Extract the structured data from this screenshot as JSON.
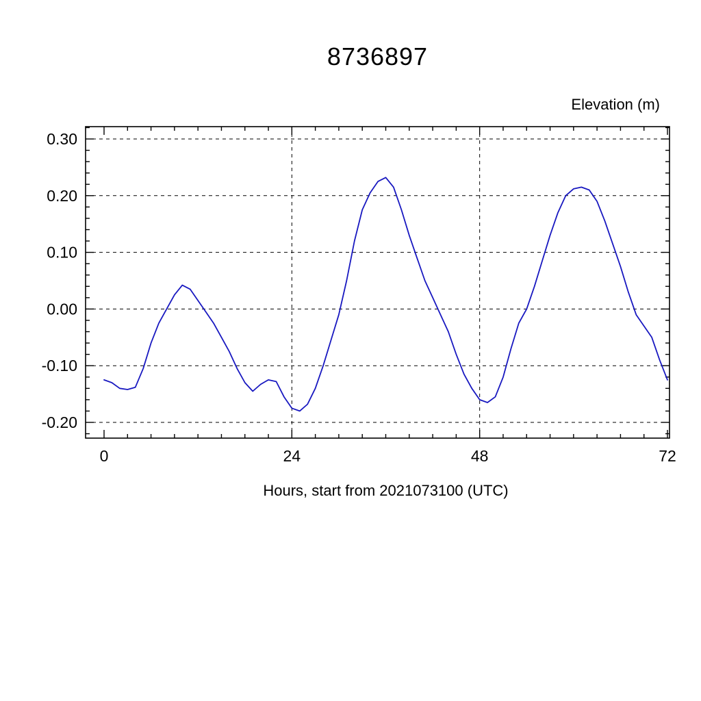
{
  "page": {
    "title": "8736897",
    "y_axis_title": "Elevation (m)",
    "x_axis_title": "Hours, start from 2021073100 (UTC)"
  },
  "chart_data": {
    "type": "line",
    "title": "8736897",
    "ylabel": "Elevation (m)",
    "xlabel": "Hours, start from 2021073100 (UTC)",
    "line_color": "#1818c0",
    "grid": "dashed",
    "xlim": [
      -2.4,
      72
    ],
    "ylim": [
      -0.228,
      0.322
    ],
    "x_ticks": [
      0,
      24,
      48,
      72
    ],
    "x_tick_labels": [
      "0",
      "24",
      "48",
      "72"
    ],
    "y_ticks": [
      0.3,
      0.2,
      0.1,
      0.0,
      -0.1,
      -0.2
    ],
    "y_tick_labels": [
      "0.30",
      "0.20",
      "0.10",
      "0.00",
      "-0.10",
      "-0.20"
    ],
    "x_minor_step": 3,
    "y_minor_step": 0.02,
    "x_grid": [
      24,
      48
    ],
    "series": [
      {
        "name": "elevation",
        "hours": [
          0,
          1,
          2,
          3,
          4,
          5,
          6,
          7,
          8,
          9,
          10,
          11,
          12,
          13,
          14,
          15,
          16,
          17,
          18,
          19,
          20,
          21,
          22,
          23,
          24,
          25,
          26,
          27,
          28,
          29,
          30,
          31,
          32,
          33,
          34,
          35,
          36,
          37,
          38,
          39,
          40,
          41,
          42,
          43,
          44,
          45,
          46,
          47,
          48,
          49,
          50,
          51,
          52,
          53,
          54,
          55,
          56,
          57,
          58,
          59,
          60,
          61,
          62,
          63,
          64,
          65,
          66,
          67,
          68,
          69,
          70,
          71,
          72
        ],
        "values": [
          -0.125,
          -0.13,
          -0.14,
          -0.142,
          -0.138,
          -0.105,
          -0.06,
          -0.025,
          0.0,
          0.025,
          0.042,
          0.035,
          0.015,
          -0.005,
          -0.025,
          -0.05,
          -0.075,
          -0.105,
          -0.13,
          -0.145,
          -0.133,
          -0.125,
          -0.128,
          -0.155,
          -0.175,
          -0.18,
          -0.168,
          -0.14,
          -0.1,
          -0.055,
          -0.01,
          0.05,
          0.12,
          0.175,
          0.205,
          0.225,
          0.232,
          0.215,
          0.175,
          0.13,
          0.09,
          0.05,
          0.02,
          -0.01,
          -0.04,
          -0.08,
          -0.115,
          -0.14,
          -0.16,
          -0.165,
          -0.155,
          -0.12,
          -0.07,
          -0.025,
          0.0,
          0.04,
          0.085,
          0.13,
          0.17,
          0.2,
          0.212,
          0.215,
          0.21,
          0.19,
          0.155,
          0.115,
          0.075,
          0.03,
          -0.01,
          -0.03,
          -0.05,
          -0.09,
          -0.125
        ]
      }
    ]
  }
}
